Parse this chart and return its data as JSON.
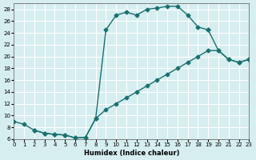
{
  "xlabel": "Humidex (Indice chaleur)",
  "bg_color": "#d6eef0",
  "grid_color": "#ffffff",
  "line_color": "#1a7070",
  "xlim": [
    0,
    23
  ],
  "ylim": [
    6,
    29
  ],
  "xticks": [
    0,
    1,
    2,
    3,
    4,
    5,
    6,
    7,
    8,
    9,
    10,
    11,
    12,
    13,
    14,
    15,
    16,
    17,
    18,
    19,
    20,
    21,
    22,
    23
  ],
  "yticks": [
    6,
    8,
    10,
    12,
    14,
    16,
    18,
    20,
    22,
    24,
    26,
    28
  ],
  "curve1_x": [
    0,
    1,
    2,
    3,
    4,
    5,
    6,
    7,
    8,
    9,
    10,
    11,
    12,
    13,
    14,
    15,
    16,
    17,
    18,
    19
  ],
  "curve1_y": [
    9.0,
    8.5,
    7.5,
    7.0,
    6.8,
    6.7,
    6.2,
    6.3,
    9.5,
    24.5,
    27.0,
    27.5,
    27.0,
    28.0,
    28.2,
    28.5,
    28.5,
    27.0,
    25.0,
    24.5
  ],
  "curve2_x": [
    2,
    3,
    4,
    5,
    6,
    7,
    8,
    9,
    10,
    11,
    12,
    13,
    14,
    15,
    16,
    17,
    18,
    19,
    20,
    21,
    22,
    23
  ],
  "curve2_y": [
    7.5,
    7.0,
    6.8,
    6.7,
    6.2,
    6.3,
    9.5,
    11.0,
    12.0,
    13.0,
    14.0,
    15.0,
    16.0,
    17.0,
    18.0,
    19.0,
    20.0,
    21.0,
    21.0,
    19.5,
    19.0,
    19.5
  ],
  "curve3_x": [
    19,
    20,
    21,
    22,
    23
  ],
  "curve3_y": [
    24.5,
    21.0,
    19.5,
    19.0,
    19.5
  ]
}
